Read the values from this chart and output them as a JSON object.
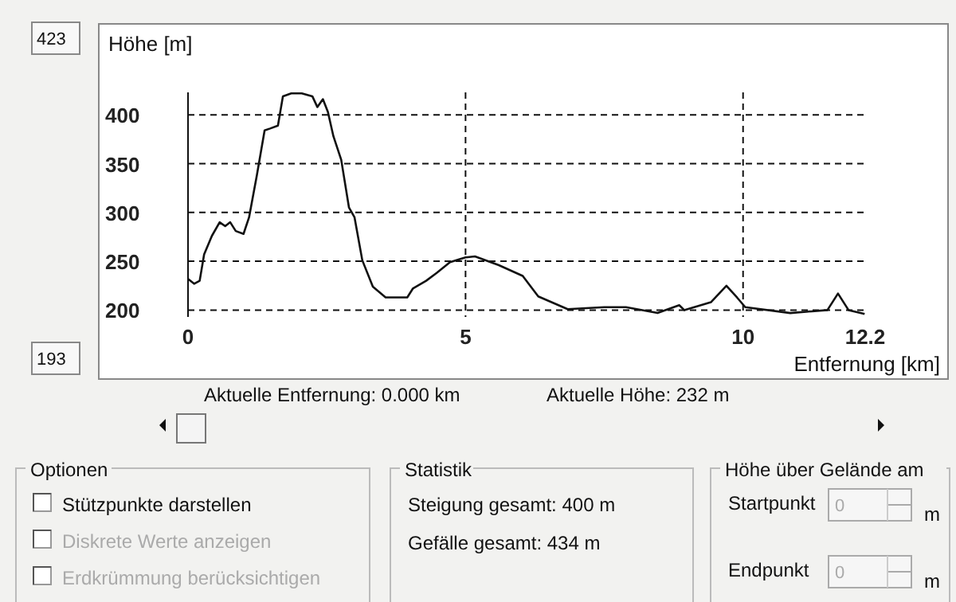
{
  "chart_data": {
    "type": "line",
    "ylabel": "Höhe [m]",
    "xlabel": "Entfernung [km]",
    "x": [
      0,
      0.11,
      0.21,
      0.29,
      0.43,
      0.57,
      0.67,
      0.76,
      0.86,
      1.0,
      1.1,
      1.24,
      1.38,
      1.48,
      1.62,
      1.71,
      1.86,
      2.05,
      2.24,
      2.33,
      2.43,
      2.52,
      2.62,
      2.76,
      2.9,
      3.0,
      3.14,
      3.33,
      3.56,
      3.95,
      4.05,
      4.29,
      4.48,
      4.72,
      5.0,
      5.17,
      5.6,
      6.03,
      6.31,
      6.84,
      7.5,
      7.89,
      8.46,
      8.85,
      8.94,
      9.42,
      9.7,
      9.89,
      10.04,
      10.85,
      11.52,
      11.71,
      11.9,
      12.19
    ],
    "series": [
      {
        "color": "#111111",
        "values": [
          232,
          227,
          230,
          257,
          276,
          290,
          286,
          290,
          281,
          278,
          295,
          338,
          384,
          386,
          389,
          419,
          422,
          422,
          419,
          408,
          416,
          403,
          378,
          354,
          305,
          295,
          251,
          224,
          213,
          213,
          222,
          230,
          238,
          249,
          254,
          255,
          246,
          235,
          214,
          201,
          203,
          203,
          197,
          205,
          200,
          208,
          225,
          213,
          203,
          197,
          200,
          217,
          200,
          196
        ]
      }
    ],
    "xlim": [
      0,
      12.2
    ],
    "ylim": [
      193,
      423
    ],
    "xticks": [
      0,
      5,
      10,
      12.2
    ],
    "yticks": [
      200,
      250,
      300,
      350,
      400
    ],
    "grid": true,
    "line_style": "solid",
    "marker": "none",
    "annotations": [
      "423",
      "193",
      "Aktuelle Entfernung: 0.000 km",
      "Aktuelle Höhe: 232 m",
      "Optionen",
      "Stützpunkte darstellen",
      "Diskrete Werte anzeigen",
      "Erdkrümmung berücksichtigen",
      "Statistik",
      "Steigung gesamt: 400 m",
      "Gefälle gesamt: 434 m",
      "Höhe über Gelände am",
      "Startpunkt",
      "Endpunkt",
      "0",
      "m",
      "0",
      "m"
    ]
  }
}
